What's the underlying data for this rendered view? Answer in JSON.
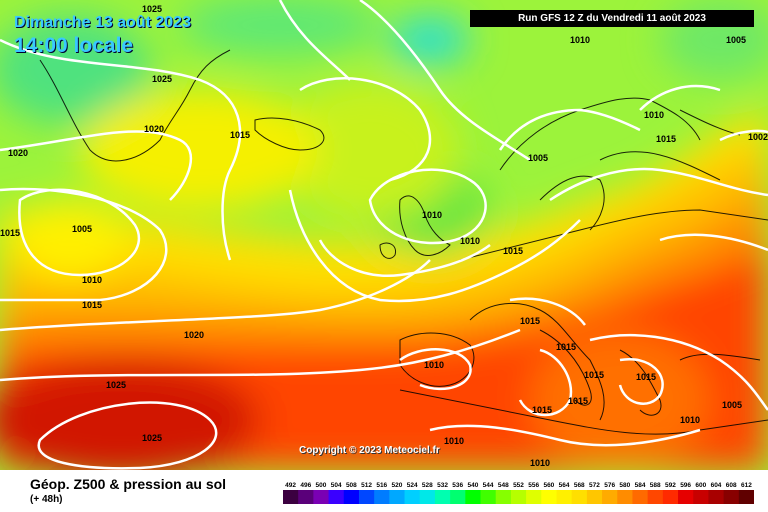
{
  "header": {
    "date": "Dimanche 13 août 2023",
    "local_time": "14:00 locale",
    "run": "Run GFS 12 Z du Vendredi 11 août 2023"
  },
  "copyright": "Copyright © 2023 Meteociel.fr",
  "footer": {
    "title": "Géop. Z500 & pression au sol",
    "lead_time": "(+ 48h)"
  },
  "legend": {
    "ticks": [
      "492",
      "496",
      "500",
      "504",
      "508",
      "512",
      "516",
      "520",
      "524",
      "528",
      "532",
      "536",
      "540",
      "544",
      "548",
      "552",
      "556",
      "560",
      "564",
      "568",
      "572",
      "576",
      "580",
      "584",
      "588",
      "592",
      "596",
      "600",
      "604",
      "608",
      "612"
    ],
    "colors": [
      "#3b0040",
      "#5a007a",
      "#7a00b4",
      "#3a00ff",
      "#0000ff",
      "#0047ff",
      "#007cff",
      "#00a8ff",
      "#00cfff",
      "#00e8e8",
      "#00ffb0",
      "#00ff70",
      "#00ff00",
      "#40ff00",
      "#86ff00",
      "#b6ff00",
      "#dfff00",
      "#ffff00",
      "#fff000",
      "#ffdf00",
      "#ffc600",
      "#ffab00",
      "#ff8c00",
      "#ff6a00",
      "#ff4700",
      "#ff2a00",
      "#e60000",
      "#c80000",
      "#a80000",
      "#880000",
      "#600000"
    ]
  },
  "isobar_labels": [
    "1025",
    "1025",
    "1020",
    "1020",
    "1015",
    "1005",
    "1010",
    "1015",
    "1020",
    "1025",
    "1025",
    "1010",
    "1005",
    "1005",
    "1010",
    "1015",
    "1010",
    "1015",
    "1015",
    "1010",
    "1015",
    "1015",
    "1015",
    "1015",
    "1010",
    "1005",
    "1010",
    "1010",
    "1010",
    "1015",
    "1015",
    "1002"
  ]
}
